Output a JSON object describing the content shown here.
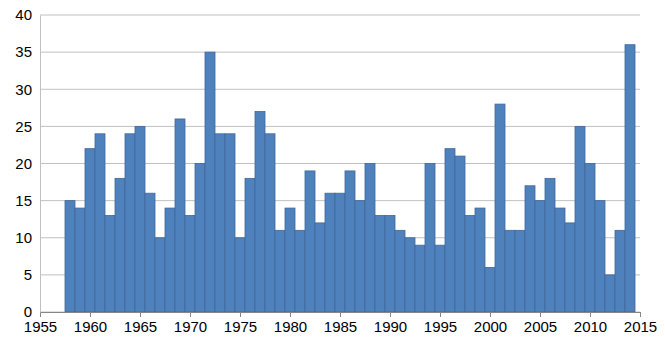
{
  "chart_data": {
    "type": "bar",
    "x": [
      1958,
      1959,
      1960,
      1961,
      1962,
      1963,
      1964,
      1965,
      1966,
      1967,
      1968,
      1969,
      1970,
      1971,
      1972,
      1973,
      1974,
      1975,
      1976,
      1977,
      1978,
      1979,
      1980,
      1981,
      1982,
      1983,
      1984,
      1985,
      1986,
      1987,
      1988,
      1989,
      1990,
      1991,
      1992,
      1993,
      1994,
      1995,
      1996,
      1997,
      1998,
      1999,
      2000,
      2001,
      2002,
      2003,
      2004,
      2005,
      2006,
      2007,
      2008,
      2009,
      2010,
      2011,
      2012,
      2013,
      2014
    ],
    "values": [
      15,
      14,
      22,
      24,
      13,
      18,
      24,
      25,
      16,
      10,
      14,
      26,
      13,
      20,
      35,
      24,
      24,
      10,
      18,
      27,
      24,
      11,
      14,
      11,
      19,
      12,
      16,
      16,
      19,
      15,
      20,
      13,
      13,
      11,
      10,
      9,
      20,
      9,
      22,
      21,
      13,
      14,
      6,
      28,
      11,
      11,
      17,
      15,
      18,
      14,
      12,
      25,
      20,
      15,
      5,
      11,
      36
    ],
    "color": "#4f81bd",
    "xlim": [
      1955,
      2015
    ],
    "xticks": [
      1955,
      1960,
      1965,
      1970,
      1975,
      1980,
      1985,
      1990,
      1995,
      2000,
      2005,
      2010,
      2015
    ],
    "ylim": [
      0,
      40
    ],
    "yticks": [
      0,
      5,
      10,
      15,
      20,
      25,
      30,
      35,
      40
    ],
    "grid": true
  }
}
